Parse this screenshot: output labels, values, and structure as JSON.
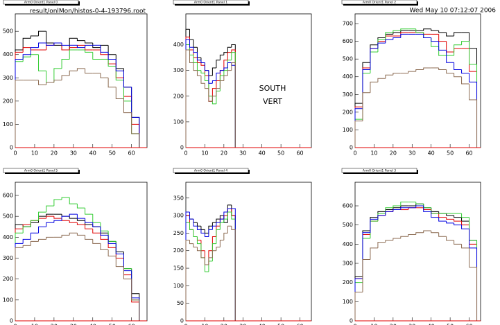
{
  "file_label": "result/onlMon/histos-0-4-193796.root",
  "timestamp": "Wed May 10 07:12:07 2006",
  "chart_data": [
    {
      "type": "histogram",
      "title": "Arm0 Orient1 Panel 0",
      "bins": [
        0,
        4,
        8,
        12,
        16,
        20,
        24,
        28,
        32,
        36,
        40,
        44,
        48,
        52,
        56,
        60,
        64
      ],
      "xlim": [
        0,
        68
      ],
      "xticks": [
        0,
        10,
        20,
        30,
        40,
        50,
        60
      ],
      "ylim": [
        0,
        575
      ],
      "yticks": [
        0,
        100,
        200,
        300,
        400,
        500
      ],
      "series": [
        {
          "color": "#000000",
          "values": [
            420,
            470,
            480,
            500,
            450,
            440,
            420,
            470,
            460,
            450,
            430,
            440,
            400,
            340,
            260,
            130
          ]
        },
        {
          "color": "#e00000",
          "values": [
            410,
            430,
            420,
            420,
            440,
            450,
            420,
            430,
            440,
            420,
            420,
            400,
            360,
            300,
            220,
            100
          ]
        },
        {
          "color": "#33cc33",
          "values": [
            370,
            390,
            400,
            330,
            280,
            340,
            380,
            420,
            420,
            410,
            380,
            380,
            350,
            290,
            200,
            60
          ]
        },
        {
          "color": "#0000e0",
          "values": [
            380,
            400,
            430,
            450,
            440,
            450,
            440,
            440,
            430,
            440,
            440,
            410,
            380,
            330,
            260,
            130
          ]
        },
        {
          "color": "#8b6a50",
          "values": [
            290,
            290,
            290,
            270,
            280,
            290,
            310,
            330,
            340,
            320,
            320,
            300,
            260,
            210,
            150,
            60
          ]
        }
      ]
    },
    {
      "type": "histogram",
      "title": "Arm0 Orient1 Panel 1",
      "annotations": [
        "SOUTH",
        "VERT"
      ],
      "bins": [
        0,
        2,
        4,
        6,
        8,
        10,
        12,
        14,
        16,
        18,
        20,
        22,
        24,
        26
      ],
      "xlim": [
        0,
        66
      ],
      "xticks": [
        0,
        10,
        20,
        30,
        40,
        50,
        60
      ],
      "ylim": [
        0,
        520
      ],
      "yticks": [
        0,
        100,
        200,
        300,
        400
      ],
      "series": [
        {
          "color": "#000000",
          "values": [
            460,
            420,
            390,
            350,
            330,
            300,
            280,
            310,
            340,
            360,
            370,
            390,
            400
          ]
        },
        {
          "color": "#e00000",
          "values": [
            430,
            380,
            350,
            330,
            320,
            280,
            180,
            230,
            260,
            300,
            340,
            370,
            380
          ]
        },
        {
          "color": "#33cc33",
          "values": [
            400,
            360,
            330,
            300,
            290,
            260,
            200,
            170,
            220,
            280,
            300,
            340,
            370
          ]
        },
        {
          "color": "#0000e0",
          "values": [
            420,
            390,
            370,
            340,
            330,
            300,
            250,
            260,
            290,
            300,
            310,
            330,
            320
          ]
        },
        {
          "color": "#8b6a50",
          "values": [
            380,
            330,
            300,
            280,
            250,
            230,
            180,
            200,
            230,
            260,
            280,
            300,
            330
          ]
        }
      ]
    },
    {
      "type": "histogram",
      "title": "Arm0 Orient1 Panel 2",
      "bins": [
        0,
        4,
        8,
        12,
        16,
        20,
        24,
        28,
        32,
        36,
        40,
        44,
        48,
        52,
        56,
        60,
        64
      ],
      "xlim": [
        0,
        66
      ],
      "xticks": [
        0,
        10,
        20,
        30,
        40,
        50,
        60
      ],
      "ylim": [
        0,
        755
      ],
      "yticks": [
        0,
        100,
        200,
        300,
        400,
        500,
        600,
        700
      ],
      "series": [
        {
          "color": "#000000",
          "values": [
            250,
            480,
            580,
            620,
            640,
            650,
            660,
            660,
            660,
            670,
            660,
            650,
            630,
            650,
            650,
            560
          ]
        },
        {
          "color": "#e00000",
          "values": [
            230,
            450,
            560,
            600,
            630,
            630,
            650,
            650,
            650,
            640,
            640,
            600,
            540,
            560,
            560,
            430
          ]
        },
        {
          "color": "#33cc33",
          "values": [
            160,
            420,
            540,
            610,
            650,
            660,
            670,
            670,
            650,
            620,
            570,
            520,
            520,
            580,
            600,
            470
          ]
        },
        {
          "color": "#0000e0",
          "values": [
            220,
            440,
            560,
            590,
            610,
            620,
            640,
            640,
            640,
            620,
            600,
            550,
            480,
            440,
            420,
            370
          ]
        },
        {
          "color": "#8b6a50",
          "values": [
            150,
            310,
            370,
            390,
            410,
            420,
            420,
            430,
            440,
            450,
            450,
            440,
            420,
            400,
            360,
            270
          ]
        }
      ]
    },
    {
      "type": "histogram",
      "title": "Arm0 Orient1 Panel 5",
      "bins": [
        0,
        4,
        8,
        12,
        16,
        20,
        24,
        28,
        32,
        36,
        40,
        44,
        48,
        52,
        56,
        60,
        64
      ],
      "xlim": [
        0,
        68
      ],
      "xticks": [
        0,
        10,
        20,
        30,
        40,
        50,
        60
      ],
      "ylim": [
        0,
        663
      ],
      "yticks": [
        0,
        100,
        200,
        300,
        400,
        500,
        600
      ],
      "series": [
        {
          "color": "#000000",
          "values": [
            460,
            450,
            470,
            500,
            510,
            510,
            500,
            490,
            480,
            460,
            450,
            420,
            380,
            330,
            250,
            130
          ]
        },
        {
          "color": "#e00000",
          "values": [
            440,
            460,
            480,
            490,
            500,
            490,
            480,
            470,
            460,
            440,
            420,
            390,
            350,
            300,
            220,
            90
          ]
        },
        {
          "color": "#33cc33",
          "values": [
            420,
            450,
            480,
            520,
            550,
            580,
            590,
            560,
            540,
            510,
            470,
            430,
            380,
            320,
            250,
            100
          ]
        },
        {
          "color": "#0000e0",
          "values": [
            370,
            390,
            420,
            450,
            470,
            480,
            500,
            510,
            490,
            470,
            450,
            410,
            370,
            320,
            240,
            110
          ]
        },
        {
          "color": "#8b6a50",
          "values": [
            350,
            360,
            380,
            390,
            400,
            400,
            410,
            420,
            410,
            390,
            370,
            340,
            310,
            260,
            200,
            100
          ]
        }
      ]
    },
    {
      "type": "histogram",
      "title": "Arm0 Orient1 Panel 4",
      "bins": [
        0,
        2,
        4,
        6,
        8,
        10,
        12,
        14,
        16,
        18,
        20,
        22,
        24,
        26
      ],
      "xlim": [
        0,
        66
      ],
      "xticks": [
        0,
        10,
        20,
        30,
        40,
        50,
        60
      ],
      "ylim": [
        0,
        395
      ],
      "yticks": [
        0,
        50,
        100,
        150,
        200,
        250,
        300,
        350
      ],
      "series": [
        {
          "color": "#000000",
          "values": [
            300,
            290,
            280,
            270,
            260,
            250,
            270,
            280,
            290,
            300,
            280,
            330,
            300
          ]
        },
        {
          "color": "#e00000",
          "values": [
            300,
            260,
            240,
            230,
            200,
            160,
            200,
            240,
            270,
            290,
            300,
            320,
            300
          ]
        },
        {
          "color": "#33cc33",
          "values": [
            280,
            260,
            240,
            220,
            180,
            140,
            170,
            220,
            260,
            280,
            290,
            310,
            290
          ]
        },
        {
          "color": "#0000e0",
          "values": [
            310,
            290,
            270,
            260,
            250,
            240,
            260,
            270,
            280,
            290,
            310,
            320,
            320
          ]
        },
        {
          "color": "#8b6a50",
          "values": [
            230,
            220,
            210,
            200,
            180,
            160,
            180,
            200,
            210,
            230,
            250,
            270,
            260
          ]
        }
      ]
    },
    {
      "type": "histogram",
      "title": "Arm0 Orient1 Panel 3",
      "bins": [
        0,
        4,
        8,
        12,
        16,
        20,
        24,
        28,
        32,
        36,
        40,
        44,
        48,
        52,
        56,
        60,
        64
      ],
      "xlim": [
        0,
        66
      ],
      "xticks": [
        0,
        10,
        20,
        30,
        40,
        50,
        60
      ],
      "ylim": [
        0,
        723
      ],
      "yticks": [
        0,
        100,
        200,
        300,
        400,
        500,
        600
      ],
      "series": [
        {
          "color": "#000000",
          "values": [
            230,
            470,
            540,
            570,
            580,
            590,
            600,
            600,
            610,
            590,
            570,
            560,
            550,
            540,
            520,
            420
          ]
        },
        {
          "color": "#e00000",
          "values": [
            220,
            450,
            520,
            550,
            570,
            580,
            580,
            590,
            590,
            580,
            560,
            540,
            530,
            520,
            500,
            400
          ]
        },
        {
          "color": "#33cc33",
          "values": [
            200,
            430,
            520,
            560,
            590,
            600,
            620,
            620,
            610,
            590,
            560,
            560,
            560,
            560,
            540,
            420
          ]
        },
        {
          "color": "#0000e0",
          "values": [
            220,
            460,
            530,
            550,
            570,
            580,
            590,
            590,
            600,
            570,
            540,
            520,
            510,
            500,
            480,
            380
          ]
        },
        {
          "color": "#8b6a50",
          "values": [
            150,
            320,
            380,
            410,
            420,
            430,
            440,
            450,
            460,
            470,
            460,
            440,
            420,
            400,
            380,
            280
          ]
        }
      ]
    }
  ]
}
